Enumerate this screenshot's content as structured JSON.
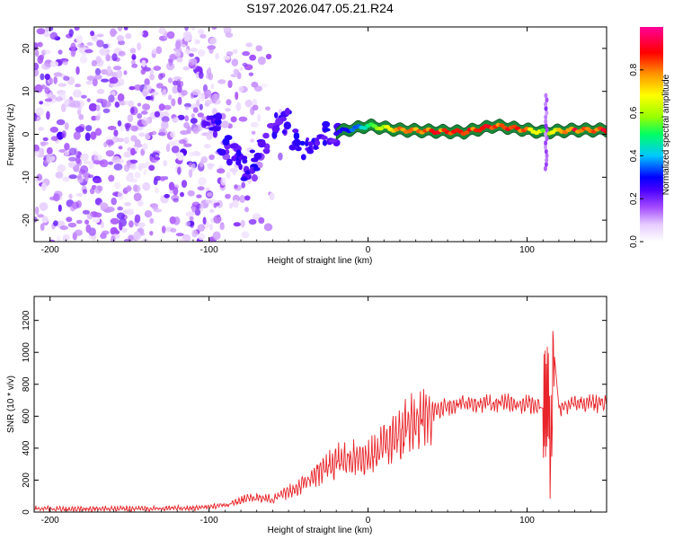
{
  "title": "S197.2026.047.05.21.R24",
  "chart_data": [
    {
      "type": "heatmap",
      "title": "S197.2026.047.05.21.R24",
      "xlabel": "Height of straight line (km)",
      "ylabel": "Frequency (Hz)",
      "xlim": [
        -210,
        150
      ],
      "ylim": [
        -25,
        25
      ],
      "xticks": [
        -200,
        -100,
        0,
        100
      ],
      "yticks": [
        -20,
        -10,
        0,
        10,
        20
      ],
      "colorbar": {
        "label": "Normalized spectral amplitude",
        "range": [
          0,
          1
        ],
        "ticks": [
          0.0,
          0.2,
          0.4,
          0.6,
          0.8
        ],
        "colors": [
          "#ffffff",
          "#e6ccff",
          "#a44bff",
          "#4b00ff",
          "#0000ff",
          "#00c8ff",
          "#00ff64",
          "#96ff00",
          "#ffff00",
          "#ff9600",
          "#ff0000",
          "#ff0099"
        ]
      },
      "signal_band": {
        "description": "strong carrier line",
        "x": [
          -20,
          0,
          20,
          60,
          80,
          100,
          110,
          130,
          150
        ],
        "freq": [
          0.5,
          2,
          1,
          0.5,
          2,
          1,
          0.5,
          1,
          1
        ],
        "amplitude": [
          0.3,
          0.55,
          0.9,
          0.95,
          0.95,
          0.9,
          0.7,
          0.95,
          0.95
        ]
      }
    },
    {
      "type": "line",
      "xlabel": "Height of straight line (km)",
      "ylabel": "SNR (10 * v/v)",
      "xlim": [
        -210,
        150
      ],
      "ylim": [
        0,
        1350
      ],
      "xticks": [
        -200,
        -100,
        0,
        100
      ],
      "yticks": [
        0,
        200,
        400,
        600,
        800,
        1000,
        1200
      ],
      "series": [
        {
          "name": "SNR",
          "color": "#e8252a",
          "x": [
            -210,
            -150,
            -110,
            -90,
            -75,
            -60,
            -45,
            -30,
            -15,
            0,
            15,
            30,
            45,
            60,
            80,
            100,
            110,
            113,
            115,
            117,
            120,
            130,
            150
          ],
          "y": [
            20,
            20,
            25,
            40,
            90,
            80,
            150,
            250,
            340,
            330,
            440,
            580,
            650,
            680,
            680,
            680,
            650,
            300,
            60,
            1000,
            660,
            680,
            680
          ]
        }
      ]
    }
  ]
}
